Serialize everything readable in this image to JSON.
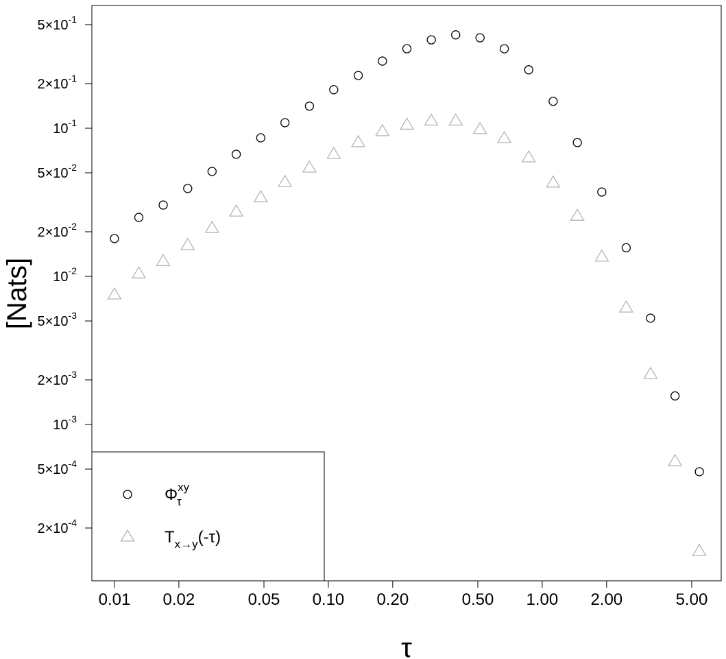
{
  "chart_data": {
    "type": "scatter",
    "xlabel": "τ",
    "ylabel": "[Nats]",
    "log_x": true,
    "log_y": true,
    "xlim": [
      0.00784,
      6.87
    ],
    "ylim": [
      8.8e-05,
      0.674
    ],
    "xticks": [
      0.01,
      0.02,
      0.05,
      {
        "value": 0.1,
        "label": "0.10"
      },
      {
        "value": 0.2,
        "label": "0.20"
      },
      {
        "value": 0.5,
        "label": "0.50"
      },
      {
        "value": 1,
        "label": "1.00"
      },
      {
        "value": 2,
        "label": "2.00"
      },
      {
        "value": 5,
        "label": "5.00"
      }
    ],
    "yticks": [
      {
        "value": 0.5,
        "label": "5×10",
        "exp": "-1"
      },
      {
        "value": 0.2,
        "label": "2×10",
        "exp": "-1"
      },
      {
        "value": 0.1,
        "label": "10",
        "exp": "-1"
      },
      {
        "value": 0.05,
        "label": "5×10",
        "exp": "-2"
      },
      {
        "value": 0.02,
        "label": "2×10",
        "exp": "-2"
      },
      {
        "value": 0.01,
        "label": "10",
        "exp": "-2"
      },
      {
        "value": 0.005,
        "label": "5×10",
        "exp": "-3"
      },
      {
        "value": 0.002,
        "label": "2×10",
        "exp": "-3"
      },
      {
        "value": 0.001,
        "label": "10",
        "exp": "-3"
      },
      {
        "value": 0.0005,
        "label": "5×10",
        "exp": "-4"
      },
      {
        "value": 0.0002,
        "label": "2×10",
        "exp": "-4"
      }
    ],
    "legend": "bottom-left",
    "x": [
      0.01,
      0.013,
      0.0169,
      0.022,
      0.0286,
      0.0371,
      0.0483,
      0.0627,
      0.0816,
      0.106,
      0.138,
      0.179,
      0.233,
      0.303,
      0.394,
      0.512,
      0.665,
      0.865,
      1.125,
      1.46,
      1.9,
      2.47,
      3.21,
      4.18,
      5.43
    ],
    "series": [
      {
        "name": "Φ",
        "name_sup": "xy",
        "name_sub": "τ",
        "marker": "circle",
        "color": "#000000",
        "values": [
          0.018,
          0.025,
          0.0303,
          0.0392,
          0.0511,
          0.0667,
          0.0861,
          0.109,
          0.141,
          0.182,
          0.227,
          0.284,
          0.344,
          0.395,
          0.427,
          0.408,
          0.344,
          0.248,
          0.152,
          0.08,
          0.0371,
          0.0156,
          0.00522,
          0.00156,
          0.00048
        ]
      },
      {
        "name": "T",
        "name_sub": "x→y",
        "name_suffix": "(-τ)",
        "marker": "triangle",
        "color": "#b5b5b5",
        "values": [
          0.0075,
          0.0104,
          0.0126,
          0.0162,
          0.0211,
          0.0272,
          0.034,
          0.0431,
          0.0539,
          0.0667,
          0.08,
          0.0949,
          0.105,
          0.112,
          0.112,
          0.098,
          0.0853,
          0.0632,
          0.0427,
          0.0255,
          0.0135,
          0.00612,
          0.00218,
          0.000562,
          0.000139
        ]
      }
    ]
  }
}
